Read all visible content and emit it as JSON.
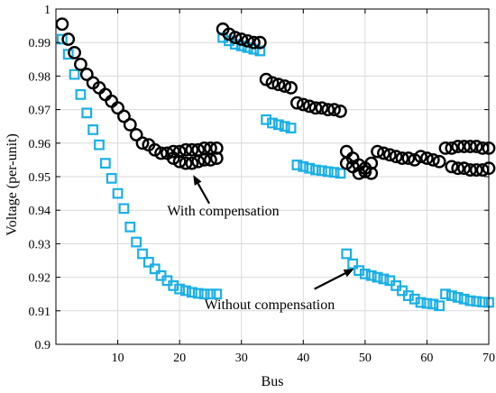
{
  "chart_data": {
    "type": "scatter",
    "xlabel": "Bus",
    "ylabel": "Voltage (per-unit)",
    "xlim": [
      0,
      70
    ],
    "ylim": [
      0.9,
      1.0
    ],
    "xticks": [
      10,
      20,
      30,
      40,
      50,
      60,
      70
    ],
    "yticks": [
      0.9,
      0.91,
      0.92,
      0.93,
      0.94,
      0.95,
      0.96,
      0.97,
      0.98,
      0.99,
      1
    ],
    "grid": true,
    "colors": {
      "with": "#000000",
      "without": "#1ab0e6"
    },
    "annotations": [
      {
        "id": "with",
        "text": "With compensation",
        "text_pos": [
          18,
          0.9385
        ],
        "arrow_from": [
          24.8,
          0.942
        ],
        "arrow_to": [
          22.2,
          0.9505
        ]
      },
      {
        "id": "without",
        "text": "Without compensation",
        "text_pos": [
          24,
          0.9105
        ],
        "arrow_from": [
          41.8,
          0.9165
        ],
        "arrow_to": [
          48.2,
          0.9225
        ]
      }
    ],
    "series": [
      {
        "id": "with",
        "marker": "circle",
        "x": [
          1,
          2,
          3,
          4,
          5,
          6,
          7,
          8,
          9,
          10,
          11,
          12,
          13,
          14,
          15,
          16,
          17,
          18,
          19,
          20,
          21,
          22,
          23,
          24,
          25,
          26,
          27,
          28,
          29,
          30,
          31,
          32,
          33,
          34,
          35,
          36,
          37,
          38,
          39,
          40,
          41,
          42,
          43,
          44,
          45,
          46,
          47,
          48,
          49,
          50,
          51,
          52,
          53,
          54,
          55,
          56,
          57,
          58,
          59,
          60,
          61,
          62,
          63,
          64,
          65,
          66,
          67,
          68,
          69,
          70,
          19,
          20,
          21,
          22,
          23,
          24,
          25,
          26,
          47,
          48,
          49,
          50,
          51,
          64,
          65,
          66,
          67,
          68,
          69,
          70
        ],
        "y": [
          0.9955,
          0.991,
          0.987,
          0.9835,
          0.9805,
          0.978,
          0.9765,
          0.9745,
          0.9725,
          0.9705,
          0.968,
          0.9655,
          0.9625,
          0.96,
          0.9595,
          0.958,
          0.957,
          0.957,
          0.9575,
          0.9575,
          0.958,
          0.958,
          0.958,
          0.9585,
          0.9585,
          0.9585,
          0.994,
          0.9925,
          0.9915,
          0.991,
          0.9905,
          0.99,
          0.99,
          0.979,
          0.978,
          0.9775,
          0.977,
          0.9765,
          0.972,
          0.9715,
          0.971,
          0.9705,
          0.9705,
          0.97,
          0.97,
          0.9695,
          0.9575,
          0.9555,
          0.9535,
          0.9515,
          0.951,
          0.9575,
          0.957,
          0.9565,
          0.956,
          0.9555,
          0.9555,
          0.955,
          0.956,
          0.9555,
          0.955,
          0.9545,
          0.9585,
          0.9585,
          0.959,
          0.959,
          0.959,
          0.959,
          0.9585,
          0.9585,
          0.9555,
          0.9545,
          0.954,
          0.954,
          0.9545,
          0.955,
          0.955,
          0.9555,
          0.954,
          0.953,
          0.951,
          0.9525,
          0.954,
          0.953,
          0.9525,
          0.9525,
          0.952,
          0.952,
          0.952,
          0.9525
        ]
      },
      {
        "id": "without",
        "marker": "square",
        "x": [
          1,
          2,
          3,
          4,
          5,
          6,
          7,
          8,
          9,
          10,
          11,
          12,
          13,
          14,
          15,
          16,
          17,
          18,
          19,
          20,
          21,
          22,
          23,
          24,
          25,
          26,
          27,
          28,
          29,
          30,
          31,
          32,
          33,
          34,
          35,
          36,
          37,
          38,
          39,
          40,
          41,
          42,
          43,
          44,
          45,
          46,
          47,
          48,
          49,
          50,
          51,
          52,
          53,
          54,
          55,
          56,
          57,
          58,
          59,
          60,
          61,
          62,
          63,
          64,
          65,
          66,
          67,
          68,
          69,
          70
        ],
        "y": [
          0.991,
          0.9865,
          0.9805,
          0.9745,
          0.969,
          0.964,
          0.9595,
          0.954,
          0.9495,
          0.945,
          0.9405,
          0.935,
          0.9305,
          0.927,
          0.9245,
          0.9225,
          0.9205,
          0.919,
          0.9175,
          0.9165,
          0.916,
          0.9155,
          0.9152,
          0.915,
          0.915,
          0.915,
          0.9915,
          0.9905,
          0.9895,
          0.989,
          0.9885,
          0.988,
          0.9875,
          0.967,
          0.966,
          0.9655,
          0.965,
          0.9645,
          0.9535,
          0.953,
          0.9525,
          0.952,
          0.9518,
          0.9515,
          0.9513,
          0.951,
          0.927,
          0.924,
          0.922,
          0.921,
          0.9205,
          0.92,
          0.9195,
          0.919,
          0.9175,
          0.916,
          0.9145,
          0.9135,
          0.9125,
          0.9122,
          0.912,
          0.9115,
          0.915,
          0.9145,
          0.914,
          0.9135,
          0.913,
          0.9128,
          0.9126,
          0.9125
        ]
      }
    ]
  }
}
